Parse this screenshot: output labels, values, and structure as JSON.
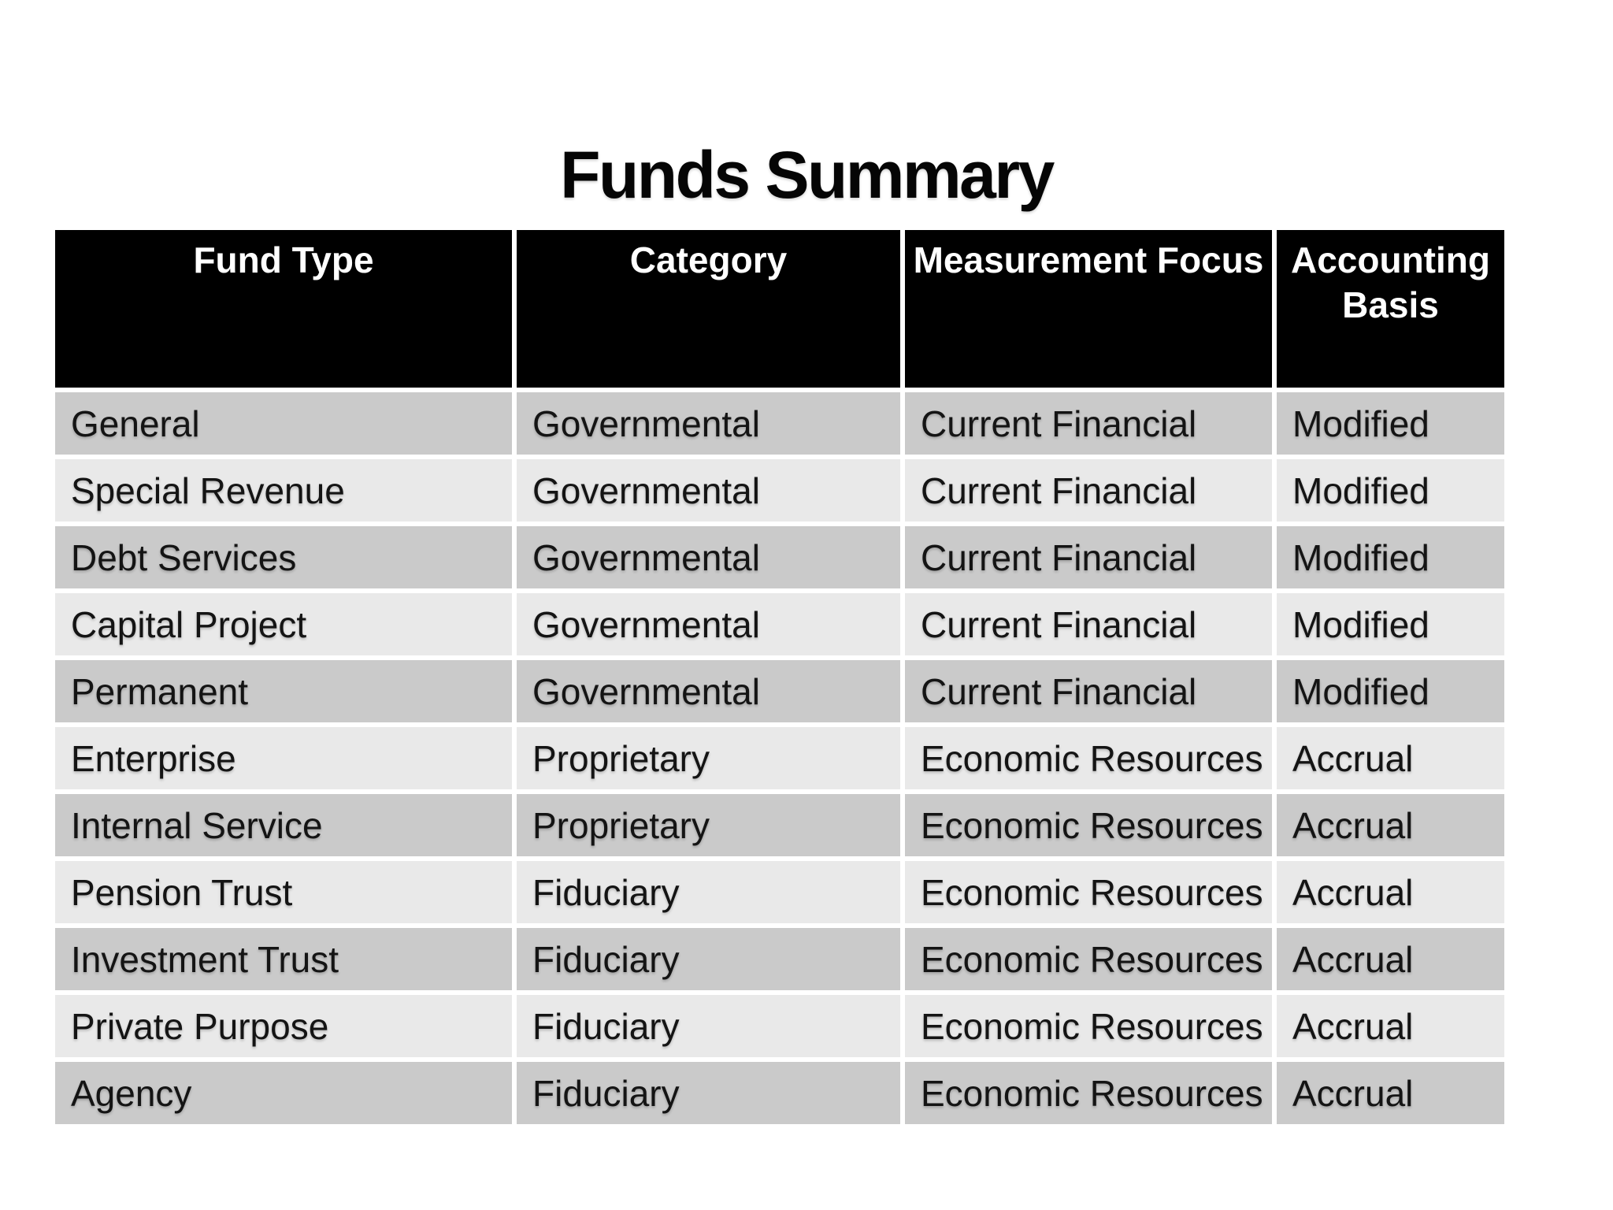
{
  "slide": {
    "title": "Funds Summary"
  },
  "table": {
    "columns": [
      {
        "key": "fund_type",
        "label": "Fund Type"
      },
      {
        "key": "category",
        "label": "Category"
      },
      {
        "key": "measurement_focus",
        "label": "Measurement Focus"
      },
      {
        "key": "accounting_basis",
        "label": "Accounting Basis"
      }
    ],
    "rows": [
      {
        "fund_type": "General",
        "category": "Governmental",
        "measurement_focus": "Current Financial",
        "accounting_basis": "Modified"
      },
      {
        "fund_type": "Special Revenue",
        "category": "Governmental",
        "measurement_focus": "Current Financial",
        "accounting_basis": "Modified"
      },
      {
        "fund_type": "Debt Services",
        "category": "Governmental",
        "measurement_focus": "Current Financial",
        "accounting_basis": "Modified"
      },
      {
        "fund_type": "Capital Project",
        "category": "Governmental",
        "measurement_focus": "Current Financial",
        "accounting_basis": "Modified"
      },
      {
        "fund_type": "Permanent",
        "category": "Governmental",
        "measurement_focus": "Current Financial",
        "accounting_basis": "Modified"
      },
      {
        "fund_type": "Enterprise",
        "category": "Proprietary",
        "measurement_focus": "Economic Resources",
        "accounting_basis": "Accrual"
      },
      {
        "fund_type": "Internal Service",
        "category": "Proprietary",
        "measurement_focus": "Economic Resources",
        "accounting_basis": "Accrual"
      },
      {
        "fund_type": "Pension Trust",
        "category": "Fiduciary",
        "measurement_focus": "Economic Resources",
        "accounting_basis": "Accrual"
      },
      {
        "fund_type": "Investment Trust",
        "category": "Fiduciary",
        "measurement_focus": "Economic Resources",
        "accounting_basis": "Accrual"
      },
      {
        "fund_type": "Private Purpose",
        "category": "Fiduciary",
        "measurement_focus": "Economic Resources",
        "accounting_basis": "Accrual"
      },
      {
        "fund_type": "Agency",
        "category": "Fiduciary",
        "measurement_focus": "Economic Resources",
        "accounting_basis": "Accrual"
      }
    ]
  },
  "colors": {
    "page_background": "#ffffff",
    "header_background": "#000000",
    "header_text": "#ffffff",
    "row_band_dark": "#cacaca",
    "row_band_light": "#e9e9e9",
    "cell_text": "#141414",
    "title_text": "#050505"
  }
}
